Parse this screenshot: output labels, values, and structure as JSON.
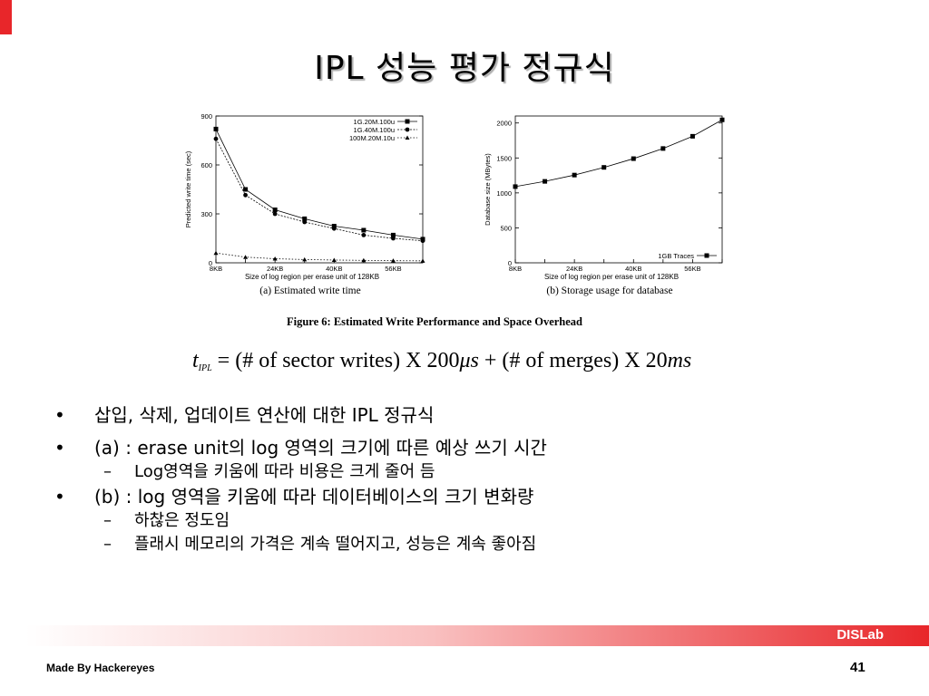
{
  "title": "IPL 성능 평가 정규식",
  "figure_caption": "Figure 6: Estimated Write Performance and Space Overhead",
  "formula": {
    "t": "t",
    "sub": "IPL",
    "eq": " = (# of sector writes) X 200",
    "mu": "μs",
    "plus": " + (# of merges) X 20",
    "ms": "ms"
  },
  "bullets": [
    {
      "level": 1,
      "text": "삽입, 삭제, 업데이트 연산에 대한 IPL 정규식"
    },
    {
      "level": 1,
      "text": "(a) : erase unit의 log 영역의 크기에 따른 예상 쓰기 시간"
    },
    {
      "level": 2,
      "text": "Log영역을 키움에 따라 비용은 크게 줄어 듬"
    },
    {
      "level": 1,
      "text": "(b) : log 영역을 키움에 따라 데이터베이스의 크기 변화량"
    },
    {
      "level": 2,
      "text": "하찮은 정도임"
    },
    {
      "level": 2,
      "text": "플래시 메모리의 가격은 계속 떨어지고, 성능은 계속 좋아짐"
    }
  ],
  "footer": {
    "lab": "DISLab",
    "author": "Made By Hackereyes",
    "page": "41"
  },
  "colors": {
    "accent": "#e8262a"
  },
  "chart_data": [
    {
      "type": "line",
      "caption": "(a) Estimated write time",
      "xlabel": "Size of log region per erase unit of 128KB",
      "ylabel": "Predicted write time (sec)",
      "x": [
        8,
        16,
        24,
        32,
        40,
        48,
        56,
        64
      ],
      "x_ticks": [
        {
          "value": 8,
          "label": "8KB"
        },
        {
          "value": 24,
          "label": "24KB"
        },
        {
          "value": 40,
          "label": "40KB"
        },
        {
          "value": 56,
          "label": "56KB"
        }
      ],
      "y_ticks": [
        0,
        300,
        600,
        900
      ],
      "xlim": [
        8,
        64
      ],
      "ylim": [
        0,
        900
      ],
      "legend_position": "top-right",
      "series": [
        {
          "name": "1G.20M.100u",
          "marker": "square",
          "values": [
            820,
            450,
            325,
            270,
            225,
            200,
            170,
            145
          ]
        },
        {
          "name": "1G.40M.100u",
          "marker": "circle",
          "values": [
            760,
            415,
            300,
            250,
            210,
            170,
            150,
            135
          ]
        },
        {
          "name": "100M.20M.10u",
          "marker": "triangle",
          "values": [
            60,
            35,
            25,
            20,
            17,
            15,
            13,
            12
          ]
        }
      ]
    },
    {
      "type": "line",
      "caption": "(b) Storage usage for database",
      "xlabel": "Size of log region per erase unit of 128KB",
      "ylabel": "Database size (MBytes)",
      "x": [
        8,
        16,
        24,
        32,
        40,
        48,
        56,
        64
      ],
      "x_ticks": [
        {
          "value": 8,
          "label": "8KB"
        },
        {
          "value": 24,
          "label": "24KB"
        },
        {
          "value": 40,
          "label": "40KB"
        },
        {
          "value": 56,
          "label": "56KB"
        }
      ],
      "y_ticks": [
        0,
        500,
        1000,
        1500,
        2000
      ],
      "xlim": [
        8,
        64
      ],
      "ylim": [
        0,
        2100
      ],
      "legend_position": "bottom-right",
      "series": [
        {
          "name": "1GB Traces",
          "marker": "square",
          "values": [
            1090,
            1165,
            1255,
            1365,
            1490,
            1635,
            1810,
            2045
          ]
        }
      ]
    }
  ]
}
